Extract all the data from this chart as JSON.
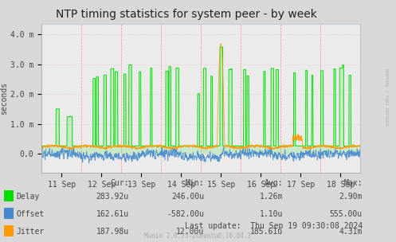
{
  "title": "NTP timing statistics for system peer - by week",
  "ylabel": "seconds",
  "bg_color": "#d8d8d8",
  "plot_bg_color": "#ebebeb",
  "ylim": [
    -0.00065,
    0.00435
  ],
  "yticks": [
    0.0,
    0.001,
    0.002,
    0.003,
    0.004
  ],
  "ytick_labels": [
    "0.0",
    "1.0 m",
    "2.0 m",
    "3.0 m",
    "4.0 m"
  ],
  "xticklabels": [
    "11 Sep",
    "12 Sep",
    "13 Sep",
    "14 Sep",
    "15 Sep",
    "16 Sep",
    "17 Sep",
    "18 Sep"
  ],
  "delay_color": "#00dd00",
  "offset_color": "#4488cc",
  "jitter_color": "#ff9900",
  "cur_values": [
    "283.92u",
    "162.61u",
    "187.98u"
  ],
  "min_values": [
    "246.00u",
    "-582.00u",
    "12.00u"
  ],
  "avg_values": [
    "1.26m",
    "1.10u",
    "185.61u"
  ],
  "max_values": [
    "2.90m",
    "555.00u",
    "4.31m"
  ],
  "last_update": "Last update:  Thu Sep 19 09:30:08 2024",
  "munin_version": "Munin 2.0.25-2ubuntu0.16.04.3",
  "rrdtool_label": "RRDTOOL / TOBI OETIKER",
  "title_fontsize": 10,
  "axis_fontsize": 7,
  "legend_fontsize": 7,
  "watermark_fontsize": 5.5
}
